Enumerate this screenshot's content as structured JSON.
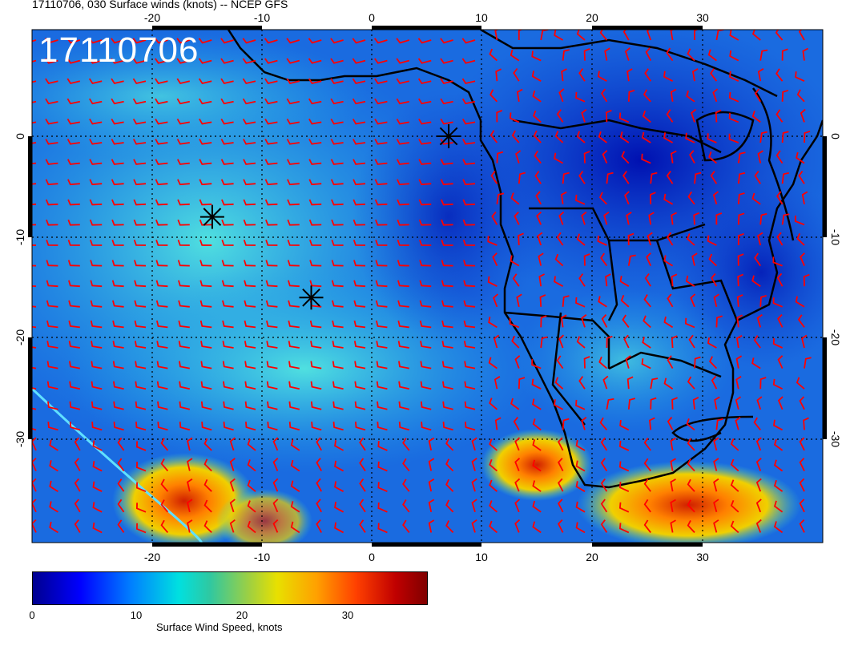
{
  "title": "17110706, 030 Surface winds (knots) -- NCEP GFS",
  "timestamp_label": "17110706",
  "lon_ticks": [
    "-20",
    "-10",
    "0",
    "10",
    "20",
    "30"
  ],
  "lat_ticks": [
    "0",
    "-10",
    "-20",
    "-30"
  ],
  "colorbar": {
    "title": "Surface Wind Speed, knots",
    "ticks": [
      "0",
      "10",
      "20",
      "30"
    ],
    "range": [
      0,
      38
    ],
    "colors": [
      "#00008f",
      "#0000ff",
      "#0080ff",
      "#00e0e0",
      "#a0d040",
      "#e8e000",
      "#ffa000",
      "#ff4000",
      "#c00000",
      "#800000"
    ]
  },
  "barb_color": "#ff0000",
  "markers": [
    {
      "name": "storm-marker-1",
      "lon": -14.5,
      "lat": -8
    },
    {
      "name": "storm-marker-2",
      "lon": -5.5,
      "lat": -16
    },
    {
      "name": "storm-marker-3",
      "lon": 7,
      "lat": 0
    }
  ]
}
